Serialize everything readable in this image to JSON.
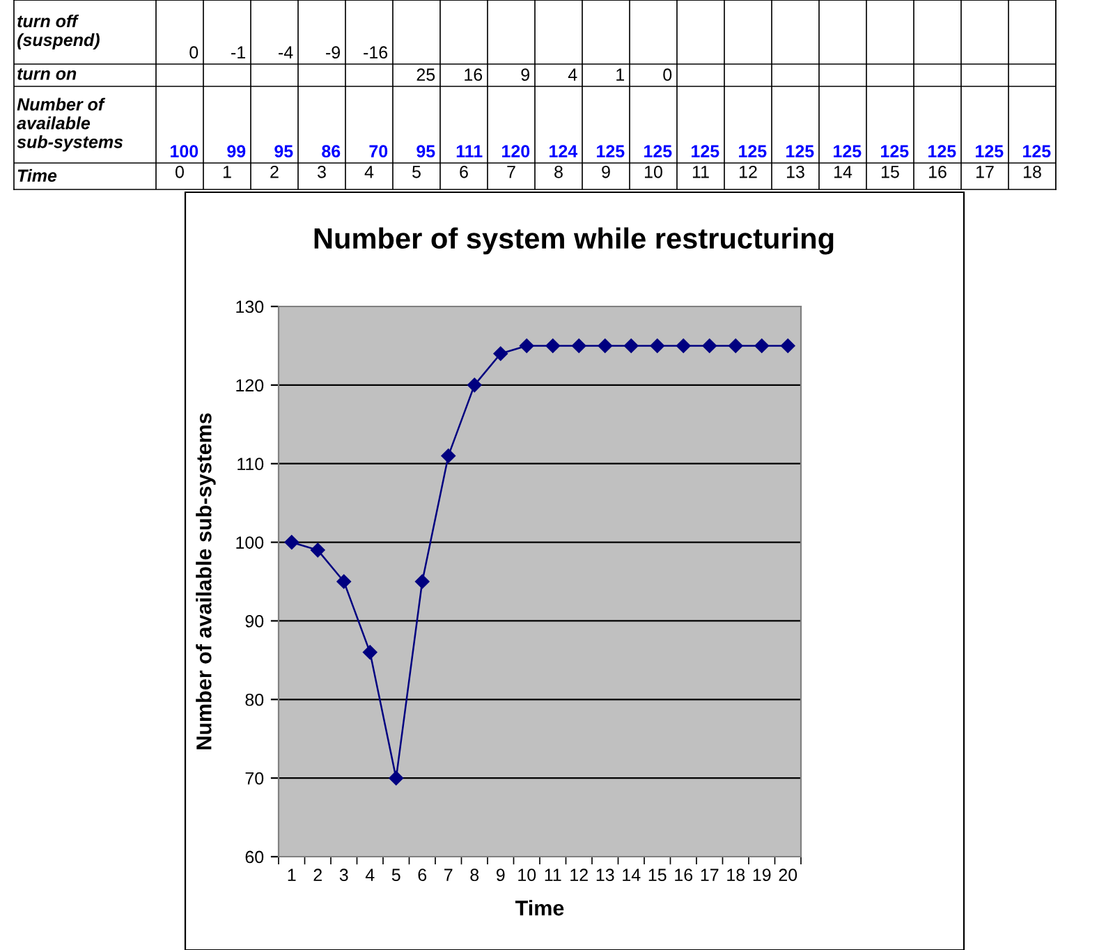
{
  "chart_data": [
    {
      "type": "heatmap",
      "xlabel": "Time",
      "categories": [
        "0",
        "1",
        "2",
        "3",
        "4",
        "5",
        "6",
        "7",
        "8",
        "9",
        "10",
        "11",
        "12",
        "13",
        "14",
        "15",
        "16",
        "17",
        "18"
      ],
      "y_categories": [
        "turn off (suspend)",
        "turn on",
        "Number of available sub-systems"
      ],
      "cells": [
        [
          0,
          -1,
          -4,
          -9,
          -16,
          null,
          null,
          null,
          null,
          null,
          null,
          null,
          null,
          null,
          null,
          null,
          null,
          null,
          null
        ],
        [
          null,
          null,
          null,
          null,
          null,
          25,
          16,
          9,
          4,
          1,
          0,
          null,
          null,
          null,
          null,
          null,
          null,
          null,
          null
        ],
        [
          100,
          99,
          95,
          86,
          70,
          95,
          111,
          120,
          124,
          125,
          125,
          125,
          125,
          125,
          125,
          125,
          125,
          125,
          125
        ]
      ],
      "data_labels": true
    },
    {
      "type": "line",
      "title": "Number of system while restructuring",
      "xlabel": "Time",
      "ylabel": "Number of available sub-systems",
      "categories": [
        "1",
        "2",
        "3",
        "4",
        "5",
        "6",
        "7",
        "8",
        "9",
        "10",
        "11",
        "12",
        "13",
        "14",
        "15",
        "16",
        "17",
        "18",
        "19",
        "20"
      ],
      "series": [
        {
          "color": "#000080",
          "values": [
            100,
            99,
            95,
            86,
            70,
            95,
            111,
            120,
            124,
            125,
            125,
            125,
            125,
            125,
            125,
            125,
            125,
            125,
            125,
            125
          ]
        }
      ],
      "ylim": [
        60,
        130
      ],
      "yticks": [
        60,
        70,
        80,
        90,
        100,
        110,
        120,
        130
      ],
      "grid": "y",
      "marker": "diamond",
      "line_style": "solid"
    }
  ]
}
